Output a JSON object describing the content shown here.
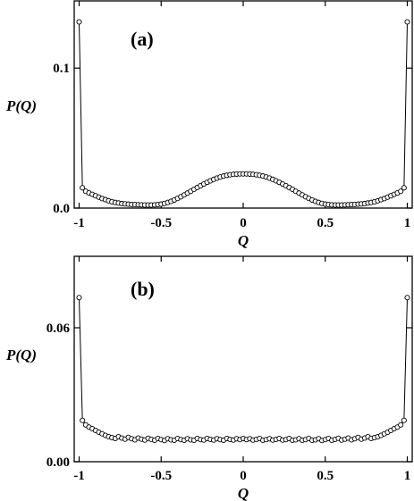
{
  "chart_data": [
    {
      "type": "line",
      "panel_label": "(a)",
      "xlabel": "Q",
      "ylabel": "P(Q)",
      "xlim": [
        -1.03,
        1.03
      ],
      "ylim": [
        0.0,
        0.148
      ],
      "x_ticks": [
        -1,
        -0.5,
        0,
        0.5,
        1
      ],
      "x_tick_labels": [
        "-1",
        "-0.5",
        "0",
        "0.5",
        "1"
      ],
      "y_ticks": [
        0.0,
        0.1
      ],
      "y_tick_labels": [
        "0.0",
        "0.1"
      ],
      "grid": false,
      "series": [
        {
          "marker": "open-circle",
          "x": [
            -1.0,
            -0.98,
            -0.96,
            -0.94,
            -0.92,
            -0.9,
            -0.88,
            -0.86,
            -0.84,
            -0.82,
            -0.8,
            -0.78,
            -0.76,
            -0.74,
            -0.72,
            -0.7,
            -0.68,
            -0.66,
            -0.64,
            -0.62,
            -0.6,
            -0.58,
            -0.56,
            -0.54,
            -0.52,
            -0.5,
            -0.48,
            -0.46,
            -0.44,
            -0.42,
            -0.4,
            -0.38,
            -0.36,
            -0.34,
            -0.32,
            -0.3,
            -0.28,
            -0.26,
            -0.24,
            -0.22,
            -0.2,
            -0.18,
            -0.16,
            -0.14,
            -0.12,
            -0.1,
            -0.08,
            -0.06,
            -0.04,
            -0.02,
            0.0,
            0.02,
            0.04,
            0.06,
            0.08,
            0.1,
            0.12,
            0.14,
            0.16,
            0.18,
            0.2,
            0.22,
            0.24,
            0.26,
            0.28,
            0.3,
            0.32,
            0.34,
            0.36,
            0.38,
            0.4,
            0.42,
            0.44,
            0.46,
            0.48,
            0.5,
            0.52,
            0.54,
            0.56,
            0.58,
            0.6,
            0.62,
            0.64,
            0.66,
            0.68,
            0.7,
            0.72,
            0.74,
            0.76,
            0.78,
            0.8,
            0.82,
            0.84,
            0.86,
            0.88,
            0.9,
            0.92,
            0.94,
            0.96,
            0.98,
            1.0
          ],
          "y": [
            0.133,
            0.0145,
            0.012,
            0.0108,
            0.0098,
            0.0088,
            0.0078,
            0.0068,
            0.006,
            0.0052,
            0.0045,
            0.004,
            0.0036,
            0.0032,
            0.003,
            0.0028,
            0.0026,
            0.0025,
            0.0024,
            0.0023,
            0.0022,
            0.0022,
            0.0022,
            0.0023,
            0.0025,
            0.0028,
            0.0033,
            0.004,
            0.0048,
            0.0058,
            0.0069,
            0.0081,
            0.0094,
            0.0107,
            0.012,
            0.0134,
            0.0147,
            0.016,
            0.0172,
            0.0184,
            0.0195,
            0.0205,
            0.0214,
            0.0222,
            0.0229,
            0.0234,
            0.0238,
            0.0241,
            0.0243,
            0.0244,
            0.0244,
            0.0244,
            0.0243,
            0.0241,
            0.0238,
            0.0234,
            0.0229,
            0.0222,
            0.0214,
            0.0205,
            0.0195,
            0.0184,
            0.0172,
            0.016,
            0.0147,
            0.0134,
            0.012,
            0.0107,
            0.0094,
            0.0081,
            0.0069,
            0.0058,
            0.0048,
            0.004,
            0.0033,
            0.0028,
            0.0025,
            0.0023,
            0.0022,
            0.0022,
            0.0022,
            0.0023,
            0.0024,
            0.0025,
            0.0026,
            0.0028,
            0.003,
            0.0032,
            0.0036,
            0.004,
            0.0045,
            0.0052,
            0.006,
            0.0068,
            0.0078,
            0.0088,
            0.0098,
            0.0108,
            0.012,
            0.0145,
            0.133
          ]
        }
      ]
    },
    {
      "type": "line",
      "panel_label": "(b)",
      "xlabel": "Q",
      "ylabel": "P(Q)",
      "xlim": [
        -1.03,
        1.03
      ],
      "ylim": [
        0.0,
        0.092
      ],
      "x_ticks": [
        -1,
        -0.5,
        0,
        0.5,
        1
      ],
      "x_tick_labels": [
        "-1",
        "-0.5",
        "0",
        "0.5",
        "1"
      ],
      "y_ticks": [
        0.0,
        0.06
      ],
      "y_tick_labels": [
        "0.00",
        "0.06"
      ],
      "grid": false,
      "series": [
        {
          "marker": "open-circle",
          "x": [
            -1.0,
            -0.98,
            -0.96,
            -0.94,
            -0.92,
            -0.9,
            -0.88,
            -0.86,
            -0.84,
            -0.82,
            -0.8,
            -0.78,
            -0.76,
            -0.74,
            -0.72,
            -0.7,
            -0.68,
            -0.66,
            -0.64,
            -0.62,
            -0.6,
            -0.58,
            -0.56,
            -0.54,
            -0.52,
            -0.5,
            -0.48,
            -0.46,
            -0.44,
            -0.42,
            -0.4,
            -0.38,
            -0.36,
            -0.34,
            -0.32,
            -0.3,
            -0.28,
            -0.26,
            -0.24,
            -0.22,
            -0.2,
            -0.18,
            -0.16,
            -0.14,
            -0.12,
            -0.1,
            -0.08,
            -0.06,
            -0.04,
            -0.02,
            0.0,
            0.02,
            0.04,
            0.06,
            0.08,
            0.1,
            0.12,
            0.14,
            0.16,
            0.18,
            0.2,
            0.22,
            0.24,
            0.26,
            0.28,
            0.3,
            0.32,
            0.34,
            0.36,
            0.38,
            0.4,
            0.42,
            0.44,
            0.46,
            0.48,
            0.5,
            0.52,
            0.54,
            0.56,
            0.58,
            0.6,
            0.62,
            0.64,
            0.66,
            0.68,
            0.7,
            0.72,
            0.74,
            0.76,
            0.78,
            0.8,
            0.82,
            0.84,
            0.86,
            0.88,
            0.9,
            0.92,
            0.94,
            0.96,
            0.98,
            1.0
          ],
          "y": [
            0.0735,
            0.0185,
            0.0165,
            0.0155,
            0.0148,
            0.014,
            0.0132,
            0.0125,
            0.0118,
            0.0112,
            0.0108,
            0.0104,
            0.0112,
            0.0106,
            0.0101,
            0.0109,
            0.0103,
            0.0098,
            0.0106,
            0.0101,
            0.0097,
            0.0105,
            0.01,
            0.0096,
            0.0104,
            0.0099,
            0.0095,
            0.0103,
            0.0098,
            0.0096,
            0.0104,
            0.0099,
            0.0096,
            0.0103,
            0.0098,
            0.0096,
            0.0104,
            0.0099,
            0.0097,
            0.0104,
            0.01,
            0.0097,
            0.0103,
            0.0099,
            0.0096,
            0.0104,
            0.01,
            0.0097,
            0.0103,
            0.0099,
            0.0104,
            0.0099,
            0.0103,
            0.0097,
            0.01,
            0.0104,
            0.0096,
            0.0099,
            0.0103,
            0.0097,
            0.01,
            0.0104,
            0.0097,
            0.0099,
            0.0104,
            0.0096,
            0.0098,
            0.0103,
            0.0096,
            0.0099,
            0.0104,
            0.0096,
            0.0098,
            0.0103,
            0.0095,
            0.0099,
            0.0104,
            0.0096,
            0.01,
            0.0105,
            0.0097,
            0.0101,
            0.0106,
            0.0098,
            0.0103,
            0.0109,
            0.0101,
            0.0106,
            0.0112,
            0.0104,
            0.0108,
            0.0112,
            0.0118,
            0.0125,
            0.0132,
            0.014,
            0.0148,
            0.0155,
            0.0165,
            0.0185,
            0.0735
          ]
        }
      ]
    }
  ]
}
